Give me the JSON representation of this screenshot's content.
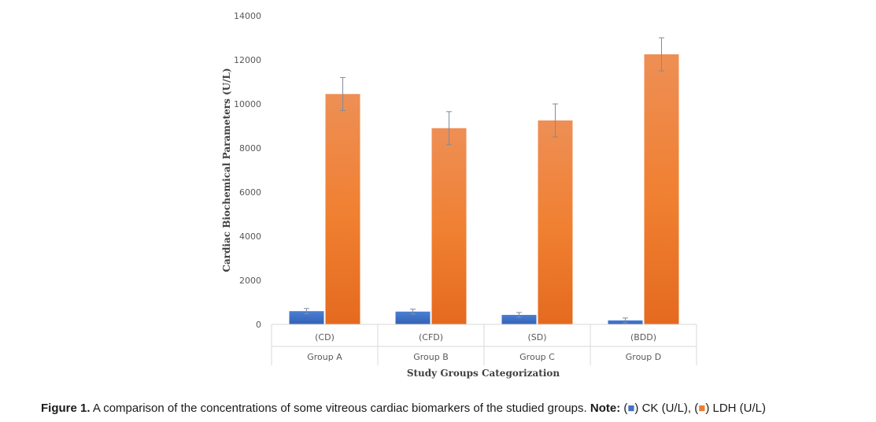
{
  "chart_data": {
    "type": "bar",
    "ylabel": "Cardiac Biochemical Parameters (U/L)",
    "xlabel": "Study Groups Categorization",
    "ylim": [
      0,
      14000
    ],
    "yticks": [
      0,
      2000,
      4000,
      6000,
      8000,
      10000,
      12000,
      14000
    ],
    "grid": false,
    "categories": [
      {
        "code": "(CD)",
        "group": "Group A"
      },
      {
        "code": "(CFD)",
        "group": "Group B"
      },
      {
        "code": "(SD)",
        "group": "Group C"
      },
      {
        "code": "(BDD)",
        "group": "Group D"
      }
    ],
    "series": [
      {
        "name": "CK (U/L)",
        "color": "#4472c4",
        "values": [
          600,
          580,
          430,
          180
        ],
        "error": [
          120,
          110,
          110,
          110
        ]
      },
      {
        "name": "LDH (U/L)",
        "color": "#ed7d31",
        "values": [
          10450,
          8900,
          9250,
          12250
        ],
        "error": [
          750,
          750,
          750,
          750
        ]
      }
    ]
  },
  "caption": {
    "figure_label": "Figure 1.",
    "text": " A comparison of the concentrations of some vitreous cardiac biomarkers of the studied groups. ",
    "note_label": "Note:",
    "ck_prefix": " (",
    "ck_glyph": "■",
    "ck_text": ") CK (U/L), (",
    "ldh_glyph": "■",
    "ldh_text": ") LDH (U/L)"
  }
}
